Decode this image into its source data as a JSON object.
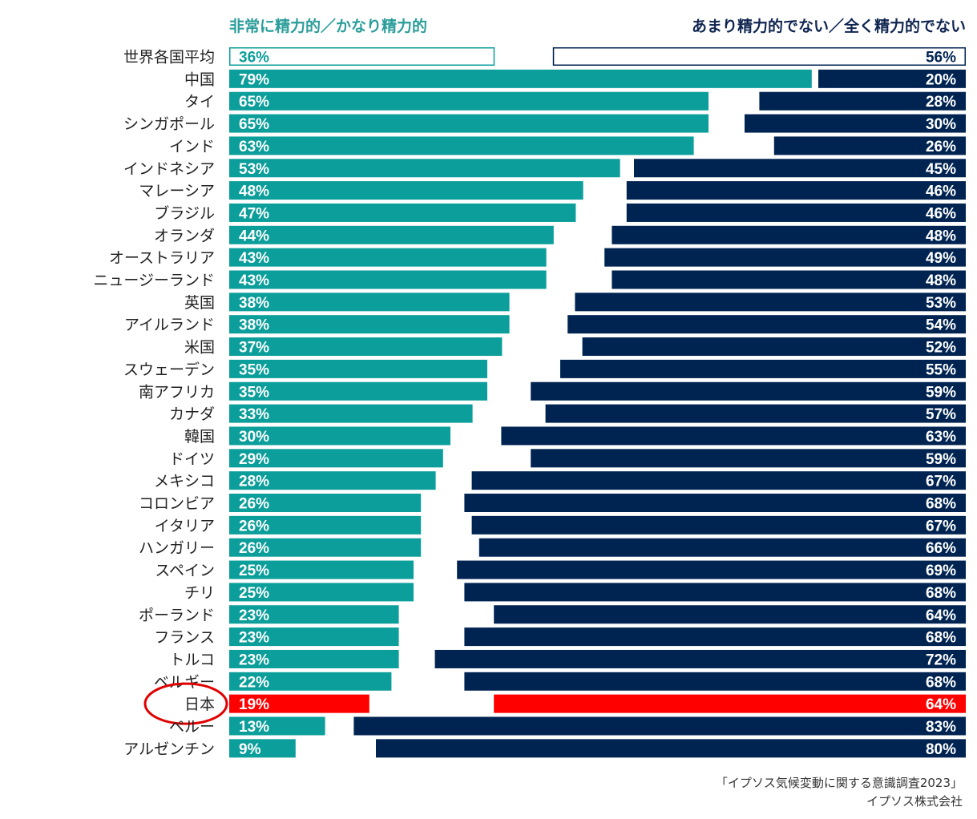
{
  "chart_data": {
    "type": "bar",
    "orientation": "horizontal-diverging",
    "left_header": "非常に精力的／かなり精力的",
    "right_header": "あまり精力的でない／全く精力的でない",
    "categories": [
      "世界各国平均",
      "中国",
      "タイ",
      "シンガポール",
      "インド",
      "インドネシア",
      "マレーシア",
      "ブラジル",
      "オランダ",
      "オーストラリア",
      "ニュージーランド",
      "英国",
      "アイルランド",
      "米国",
      "スウェーデン",
      "南アフリカ",
      "カナダ",
      "韓国",
      "ドイツ",
      "メキシコ",
      "コロンビア",
      "イタリア",
      "ハンガリー",
      "スペイン",
      "チリ",
      "ポーランド",
      "フランス",
      "トルコ",
      "ベルギー",
      "日本",
      "ペルー",
      "アルゼンチン"
    ],
    "series": [
      {
        "name": "非常に精力的／かなり精力的",
        "values": [
          36,
          79,
          65,
          65,
          63,
          53,
          48,
          47,
          44,
          43,
          43,
          38,
          38,
          37,
          35,
          35,
          33,
          30,
          29,
          28,
          26,
          26,
          26,
          25,
          25,
          23,
          23,
          23,
          22,
          19,
          13,
          9
        ]
      },
      {
        "name": "あまり精力的でない／全く精力的でない",
        "values": [
          56,
          20,
          28,
          30,
          26,
          45,
          46,
          46,
          48,
          49,
          48,
          53,
          54,
          52,
          55,
          59,
          57,
          63,
          59,
          67,
          68,
          67,
          66,
          69,
          68,
          64,
          68,
          72,
          68,
          64,
          83,
          80
        ]
      }
    ],
    "labels_left": [
      "36%",
      "79%",
      "65%",
      "65%",
      "63%",
      "53%",
      "48%",
      "47%",
      "44%",
      "43%",
      "43%",
      "38%",
      "38%",
      "37%",
      "35%",
      "35%",
      "33%",
      "30%",
      "29%",
      "28%",
      "26%",
      "26%",
      "26%",
      "25%",
      "25%",
      "23%",
      "23%",
      "23%",
      "22%",
      "19%",
      "13%",
      "9%"
    ],
    "labels_right": [
      "56%",
      "20%",
      "28%",
      "30%",
      "26%",
      "45%",
      "46%",
      "46%",
      "48%",
      "49%",
      "48%",
      "53%",
      "54%",
      "52%",
      "55%",
      "59%",
      "57%",
      "63%",
      "59%",
      "67%",
      "68%",
      "67%",
      "66%",
      "69%",
      "68%",
      "64%",
      "68%",
      "72%",
      "68%",
      "64%",
      "83%",
      "80%"
    ],
    "outlined_category": "世界各国平均",
    "highlighted_category": "日本",
    "colors": {
      "left": "#0b9e9a",
      "right": "#002452",
      "highlight": "#ff0000",
      "left_header": "#2a9d9a",
      "right_header": "#0f2550",
      "circle": "#e00000"
    }
  },
  "source": {
    "line1": "「イプソス気候変動に関する意識調査2023」",
    "line2": "イプソス株式会社"
  }
}
